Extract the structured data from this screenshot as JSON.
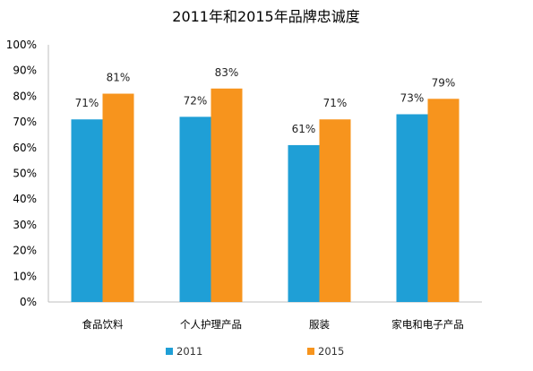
{
  "chart_data": {
    "type": "bar",
    "title": "2011年和2015年品牌忠诚度",
    "categories": [
      "食品饮料",
      "个人护理产品",
      "服装",
      "家电和电子产品"
    ],
    "series": [
      {
        "name": "2011",
        "values": [
          71,
          72,
          61,
          73
        ],
        "labels": [
          "71%",
          "72%",
          "61%",
          "73%"
        ],
        "color": "#1f9fd6"
      },
      {
        "name": "2015",
        "values": [
          81,
          83,
          71,
          79
        ],
        "labels": [
          "81%",
          "83%",
          "71%",
          "79%"
        ],
        "color": "#f7941d"
      }
    ],
    "ylim": [
      0,
      100
    ],
    "y_ticks": [
      "0%",
      "10%",
      "20%",
      "30%",
      "40%",
      "50%",
      "60%",
      "70%",
      "80%",
      "90%",
      "100%"
    ],
    "xlabel": "",
    "ylabel": "",
    "grid": false,
    "legend_position": "bottom"
  }
}
